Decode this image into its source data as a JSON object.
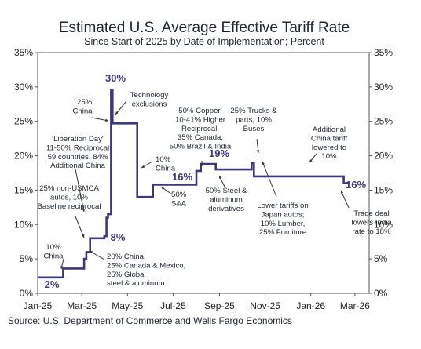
{
  "chart_data": {
    "type": "line",
    "title": "Estimated U.S. Average Effective Tariff Rate",
    "subtitle": "Since Start of 2025 by Date of Implementation; Percent",
    "source": "Source: U.S. Department of Commerce and Wells Fargo Economics",
    "xlabel": "",
    "ylabel": "",
    "x_ticks": [
      "Jan-25",
      "Mar-25",
      "May-25",
      "Jul-25",
      "Sep-25",
      "Nov-25",
      "Jan-26",
      "Mar-26"
    ],
    "x_domain": [
      "2025-01-01",
      "2026-03-20"
    ],
    "y_ticks": [
      "0%",
      "5%",
      "10%",
      "15%",
      "20%",
      "25%",
      "30%",
      "35%"
    ],
    "ylim": [
      0,
      35
    ],
    "grid": false,
    "line_color": "#3a3a78",
    "series": [
      {
        "step": "after",
        "points": [
          [
            "2025-01-01",
            2.3
          ],
          [
            "2025-02-04",
            3.6
          ],
          [
            "2025-03-04",
            5.0
          ],
          [
            "2025-03-07",
            6.0
          ],
          [
            "2025-03-12",
            8.0
          ],
          [
            "2025-03-31",
            8.3
          ],
          [
            "2025-04-03",
            11.0
          ],
          [
            "2025-04-05",
            11.5
          ],
          [
            "2025-04-09",
            29.5
          ],
          [
            "2025-04-11",
            24.7
          ],
          [
            "2025-05-14",
            14.0
          ],
          [
            "2025-06-04",
            15.8
          ],
          [
            "2025-08-01",
            17.8
          ],
          [
            "2025-08-07",
            18.8
          ],
          [
            "2025-08-27",
            18.0
          ],
          [
            "2025-10-14",
            18.9
          ],
          [
            "2025-10-17",
            17.0
          ],
          [
            "2026-02-14",
            16.0
          ],
          [
            "2026-02-22",
            16.0
          ]
        ]
      }
    ],
    "annotations": [
      {
        "lines": [
          "10%",
          "China"
        ]
      },
      {
        "lines": [
          "'Liberation Day'",
          "11-50% Reciprocal",
          "59 countries, 84%",
          "Additional China"
        ]
      },
      {
        "lines": [
          "25% non-USMCA",
          "autos, 10%",
          "Baseline reciprocal"
        ]
      },
      {
        "lines": [
          "125%",
          "China"
        ]
      },
      {
        "lines": [
          "Technology",
          "exclusions"
        ]
      },
      {
        "lines": [
          "20% China,",
          "25% Canada & Mexico,",
          "25% Global",
          "steel & aluminum"
        ]
      },
      {
        "lines": [
          "10%",
          "China"
        ]
      },
      {
        "lines": [
          "50%",
          "S&A"
        ]
      },
      {
        "lines": [
          "50% Copper,",
          "10-41% Higher",
          "Reciprocal,",
          "35% Canada,",
          "50% Brazil & India"
        ]
      },
      {
        "lines": [
          "50% Steel &",
          "aluminum",
          "derivatives"
        ]
      },
      {
        "lines": [
          "25% Trucks &",
          "parts, 10%",
          "Buses"
        ]
      },
      {
        "lines": [
          "Lower tariffs on",
          "Japan autos;",
          "10% Lumber,",
          "25% Furniture"
        ]
      },
      {
        "lines": [
          "Additional",
          "China tariff",
          "lowered to",
          "10%"
        ]
      },
      {
        "lines": [
          "Trade deal",
          "lowers India",
          "rate to 18%"
        ]
      }
    ],
    "value_labels": [
      "2%",
      "8%",
      "30%",
      "16%",
      "19%",
      "16%"
    ]
  }
}
